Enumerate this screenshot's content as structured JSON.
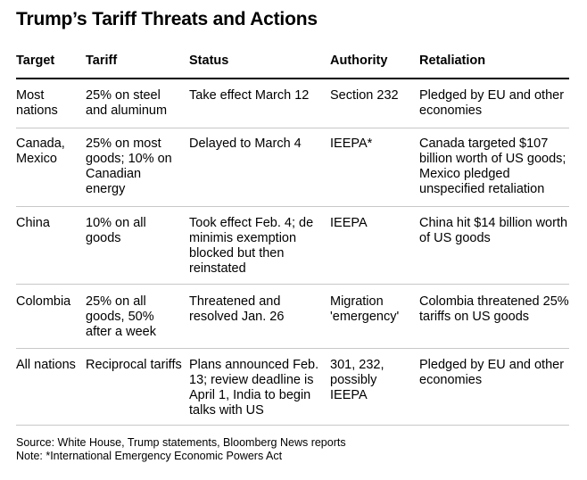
{
  "title": "Trump’s Tariff Threats and Actions",
  "columns": [
    "Target",
    "Tariff",
    "Status",
    "Authority",
    "Retaliation"
  ],
  "rows": [
    {
      "target": "Most nations",
      "tariff": "25% on steel and aluminum",
      "status": "Take effect March 12",
      "authority": "Section 232",
      "retaliation": "Pledged by EU and other economies"
    },
    {
      "target": "Canada, Mexico",
      "tariff": "25% on most goods; 10% on Canadian energy",
      "status": "Delayed to March 4",
      "authority": "IEEPA*",
      "retaliation": "Canada targeted $107 billion worth of US goods; Mexico pledged unspecified retaliation"
    },
    {
      "target": "China",
      "tariff": "10% on all goods",
      "status": "Took effect Feb. 4; de minimis exemption blocked but then reinstated",
      "authority": "IEEPA",
      "retaliation": "China hit $14 billion worth of US goods"
    },
    {
      "target": "Colombia",
      "tariff": "25% on all goods, 50% after a week",
      "status": "Threatened and resolved Jan. 26",
      "authority": "Migration 'emergency'",
      "retaliation": "Colombia threatened 25% tariffs on US goods"
    },
    {
      "target": "All nations",
      "tariff": "Reciprocal tariffs",
      "status": "Plans announced Feb. 13; review deadline is April 1, India to begin talks with US",
      "authority": "301, 232, possibly IEEPA",
      "retaliation": "Pledged by EU and other economies"
    }
  ],
  "source": "Source: White House, Trump statements, Bloomberg News reports",
  "note": "Note: *International Emergency Economic Powers Act"
}
